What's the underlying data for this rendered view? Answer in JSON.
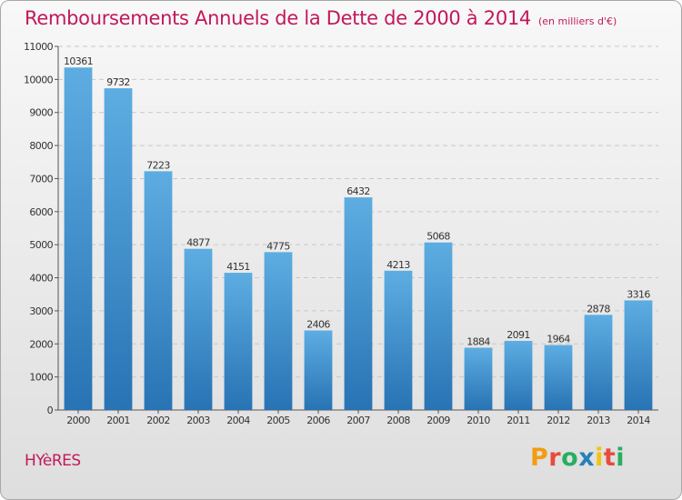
{
  "title": "Remboursements Annuels de la Dette de 2000 à 2014",
  "subtitle": "(en milliers d'€)",
  "city": "HYèRES",
  "logo": {
    "text": "Proxiti",
    "colors": [
      "#f39c12",
      "#e74c3c",
      "#27ae60",
      "#2980b9",
      "#f1c40f",
      "#e74c3c",
      "#27ae60"
    ]
  },
  "chart_data": {
    "type": "bar",
    "title": "Remboursements Annuels de la Dette de 2000 à 2014",
    "subtitle": "(en milliers d'€)",
    "xlabel": "",
    "ylabel": "",
    "categories": [
      "2000",
      "2001",
      "2002",
      "2003",
      "2004",
      "2005",
      "2006",
      "2007",
      "2008",
      "2009",
      "2010",
      "2011",
      "2012",
      "2013",
      "2014"
    ],
    "values": [
      10361,
      9732,
      7223,
      4877,
      4151,
      4775,
      2406,
      6432,
      4213,
      5068,
      1884,
      2091,
      1964,
      2878,
      3316
    ],
    "ylim": [
      0,
      11000
    ],
    "yticks": [
      0,
      1000,
      2000,
      3000,
      4000,
      5000,
      6000,
      7000,
      8000,
      9000,
      10000,
      11000
    ],
    "grid": true,
    "bar_color_top": "#5dade2",
    "bar_color_bottom": "#2873b4"
  }
}
